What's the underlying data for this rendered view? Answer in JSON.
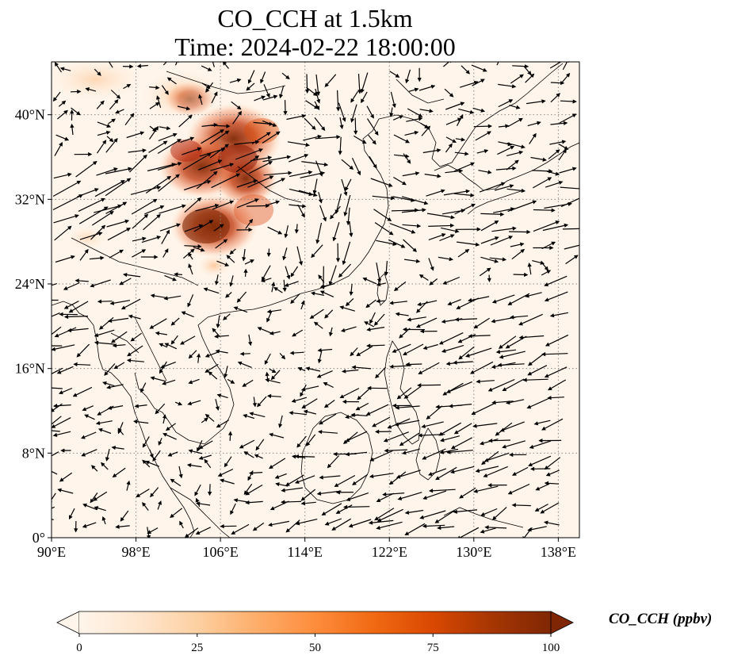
{
  "title": {
    "line1": "CO_CCH at 1.5km",
    "line2": "Time: 2024-02-22 18:00:00"
  },
  "map": {
    "lon_range": [
      90,
      140
    ],
    "lat_range": [
      0,
      45
    ],
    "lat_ticks": [
      {
        "value": 0,
        "label": "0°"
      },
      {
        "value": 8,
        "label": "8°N"
      },
      {
        "value": 16,
        "label": "16°N"
      },
      {
        "value": 24,
        "label": "24°N"
      },
      {
        "value": 32,
        "label": "32°N"
      },
      {
        "value": 40,
        "label": "40°N"
      }
    ],
    "lon_ticks": [
      {
        "value": 90,
        "label": "90°E"
      },
      {
        "value": 98,
        "label": "98°E"
      },
      {
        "value": 106,
        "label": "106°E"
      },
      {
        "value": 114,
        "label": "114°E"
      },
      {
        "value": 122,
        "label": "122°E"
      },
      {
        "value": 130,
        "label": "130°E"
      },
      {
        "value": 138,
        "label": "138°E"
      }
    ],
    "gridlines": true,
    "background_color": "#fff5eb",
    "plume_color": "#8b0000"
  },
  "colorbar": {
    "label": "CO_CCH (ppbv)",
    "min": 0,
    "max": 100,
    "ticks": [
      "0",
      "25",
      "50",
      "75",
      "100"
    ],
    "colors": [
      "#fff5eb",
      "#fee6ce",
      "#fdd0a2",
      "#fdae6b",
      "#fd8d3c",
      "#f16913",
      "#d94801",
      "#a63603",
      "#7f2704"
    ],
    "extend": "both"
  }
}
